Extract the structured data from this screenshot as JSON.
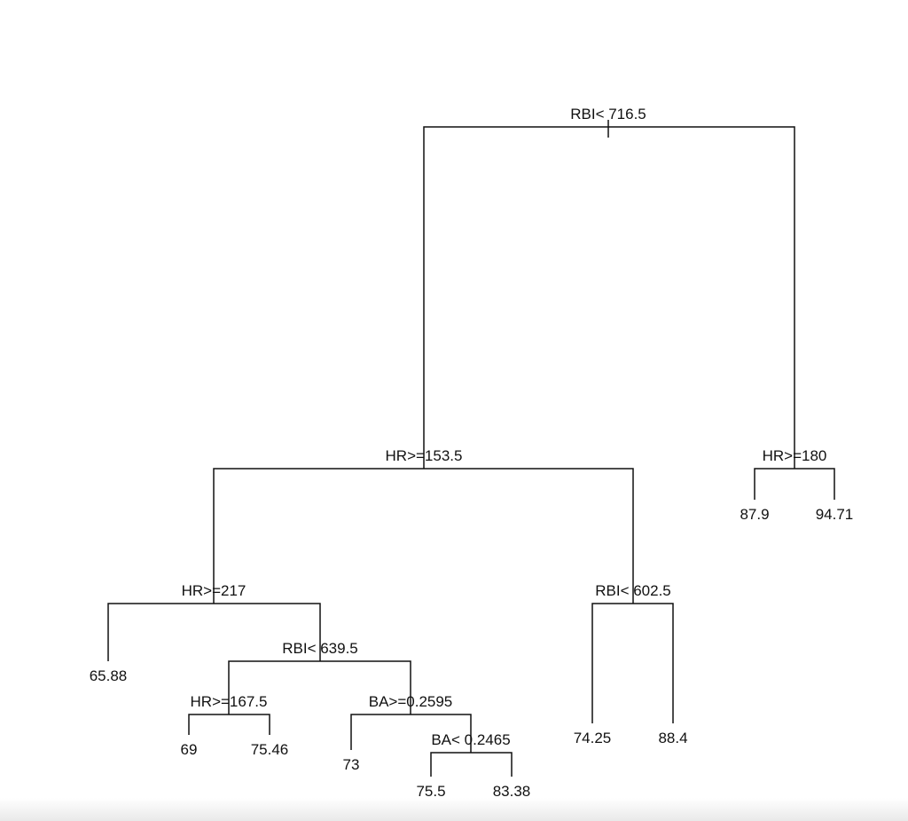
{
  "tree": {
    "id": "n1",
    "split": "RBI< 716.5",
    "children": [
      {
        "id": "n2",
        "split": "HR>=153.5",
        "children": [
          {
            "id": "n4",
            "split": "HR>=217",
            "children": [
              {
                "id": "l1",
                "value": "65.88"
              },
              {
                "id": "n9",
                "split": "RBI< 639.5",
                "children": [
                  {
                    "id": "n18",
                    "split": "HR>=167.5",
                    "children": [
                      {
                        "id": "l2",
                        "value": "69"
                      },
                      {
                        "id": "l3",
                        "value": "75.46"
                      }
                    ]
                  },
                  {
                    "id": "n19",
                    "split": "BA>=0.2595",
                    "children": [
                      {
                        "id": "l4",
                        "value": "73"
                      },
                      {
                        "id": "n39",
                        "split": "BA< 0.2465",
                        "children": [
                          {
                            "id": "l5",
                            "value": "75.5"
                          },
                          {
                            "id": "l6",
                            "value": "83.38"
                          }
                        ]
                      }
                    ]
                  }
                ]
              }
            ]
          },
          {
            "id": "n5",
            "split": "RBI< 602.5",
            "children": [
              {
                "id": "l7",
                "value": "74.25"
              },
              {
                "id": "l8",
                "value": "88.4"
              }
            ]
          }
        ]
      },
      {
        "id": "n3",
        "split": "HR>=180",
        "children": [
          {
            "id": "l9",
            "value": "87.9"
          },
          {
            "id": "l10",
            "value": "94.71"
          }
        ]
      }
    ]
  }
}
